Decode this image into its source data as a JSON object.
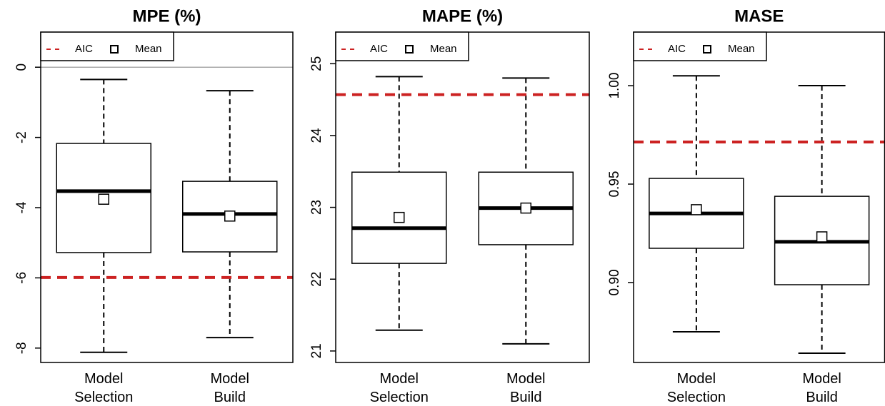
{
  "chart_data": [
    {
      "type": "box",
      "title": "MPE (%)",
      "categories": [
        "Model Selection",
        "Model Build"
      ],
      "max": [
        -0.35,
        -0.67
      ],
      "q3": [
        -2.17,
        -3.25
      ],
      "median": [
        -3.53,
        -4.18
      ],
      "q1": [
        -5.28,
        -5.26
      ],
      "min": [
        -8.12,
        -7.7
      ],
      "mean": [
        -3.76,
        -4.24
      ],
      "aic": -5.99,
      "aic_color": "#cc2222",
      "reference_line": 0,
      "ylim": [
        -8.41,
        1.0
      ],
      "yticks": [
        0,
        -2,
        -4,
        -6,
        -8
      ],
      "legend": {
        "corner": "top-left",
        "entries": [
          "AIC",
          "Mean"
        ]
      }
    },
    {
      "type": "box",
      "title": "MAPE (%)",
      "categories": [
        "Model Selection",
        "Model Build"
      ],
      "max": [
        24.82,
        24.8
      ],
      "q3": [
        23.49,
        23.49
      ],
      "median": [
        22.71,
        22.99
      ],
      "q1": [
        22.22,
        22.48
      ],
      "min": [
        21.29,
        21.1
      ],
      "mean": [
        22.86,
        22.99
      ],
      "aic": 24.57,
      "aic_color": "#cc2222",
      "ylim": [
        20.84,
        25.44
      ],
      "yticks": [
        21,
        22,
        23,
        24,
        25
      ],
      "legend": {
        "corner": "top-left",
        "entries": [
          "AIC",
          "Mean"
        ]
      }
    },
    {
      "type": "box",
      "title": "MASE",
      "categories": [
        "Model Selection",
        "Model Build"
      ],
      "max": [
        1.005,
        1.0
      ],
      "q3": [
        0.9529,
        0.9438
      ],
      "median": [
        0.9351,
        0.9207
      ],
      "q1": [
        0.9174,
        0.8989
      ],
      "min": [
        0.875,
        0.8641
      ],
      "mean": [
        0.937,
        0.9232
      ],
      "aic": 0.9714,
      "aic_color": "#cc2222",
      "ylim": [
        0.8594,
        1.0272
      ],
      "yticks": [
        {
          "value": 0.9,
          "label": "0.90"
        },
        {
          "value": 0.95,
          "label": "0.95"
        },
        {
          "value": 1.0,
          "label": "1.00"
        }
      ],
      "legend": {
        "corner": "top-left",
        "entries": [
          "AIC",
          "Mean"
        ]
      }
    }
  ]
}
